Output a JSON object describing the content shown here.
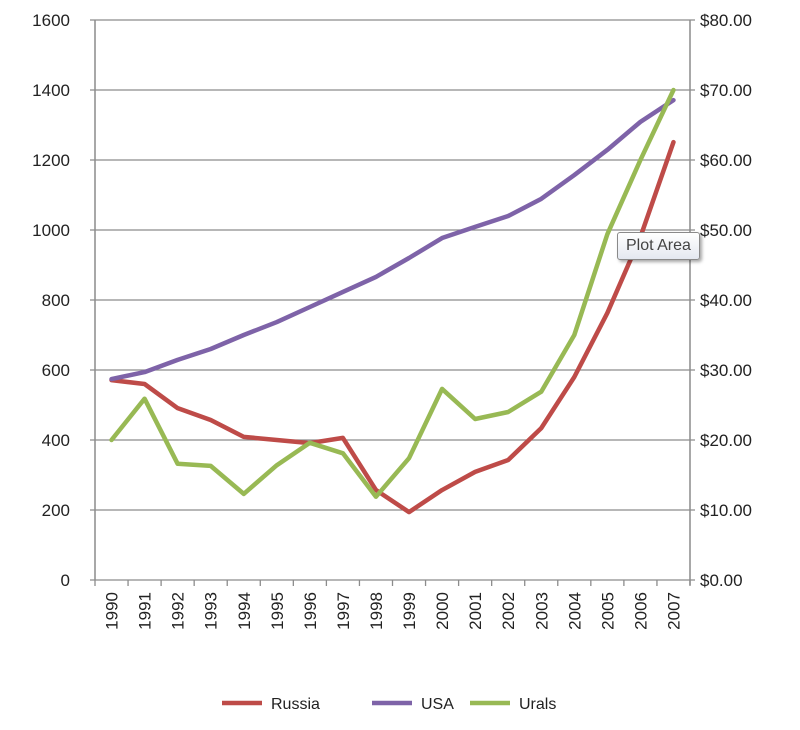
{
  "chart_data": {
    "type": "line",
    "title": "",
    "categories": [
      "1990",
      "1991",
      "1992",
      "1993",
      "1994",
      "1995",
      "1996",
      "1997",
      "1998",
      "1999",
      "2000",
      "2001",
      "2002",
      "2003",
      "2004",
      "2005",
      "2006",
      "2007"
    ],
    "y_left": {
      "range": [
        0,
        1600
      ],
      "ticks": [
        "0",
        "200",
        "400",
        "600",
        "800",
        "1000",
        "1200",
        "1400",
        "1600"
      ]
    },
    "y_right": {
      "range": [
        0,
        80
      ],
      "ticks": [
        "$0.00",
        "$10.00",
        "$20.00",
        "$30.00",
        "$40.00",
        "$50.00",
        "$60.00",
        "$70.00",
        "$80.00"
      ]
    },
    "grid": true,
    "legend_position": "bottom",
    "series": [
      {
        "name": "Russia",
        "axis": "left",
        "color": "#be4b48",
        "values": [
          571,
          560,
          491,
          457,
          409,
          400,
          391,
          406,
          257,
          194,
          257,
          309,
          343,
          434,
          580,
          763,
          980,
          1251
        ]
      },
      {
        "name": "USA",
        "axis": "left",
        "color": "#7e63a8",
        "values": [
          574,
          594,
          629,
          660,
          700,
          737,
          780,
          823,
          866,
          920,
          977,
          1009,
          1040,
          1089,
          1157,
          1229,
          1309,
          1371
        ]
      },
      {
        "name": "Urals",
        "axis": "right",
        "color": "#98b954",
        "values": [
          20.0,
          25.9,
          16.6,
          16.3,
          12.3,
          16.4,
          19.6,
          18.1,
          11.9,
          17.4,
          27.3,
          23.0,
          24.0,
          26.9,
          35.0,
          49.4,
          60.0,
          70.0
        ]
      }
    ]
  },
  "tooltip": "Plot Area"
}
